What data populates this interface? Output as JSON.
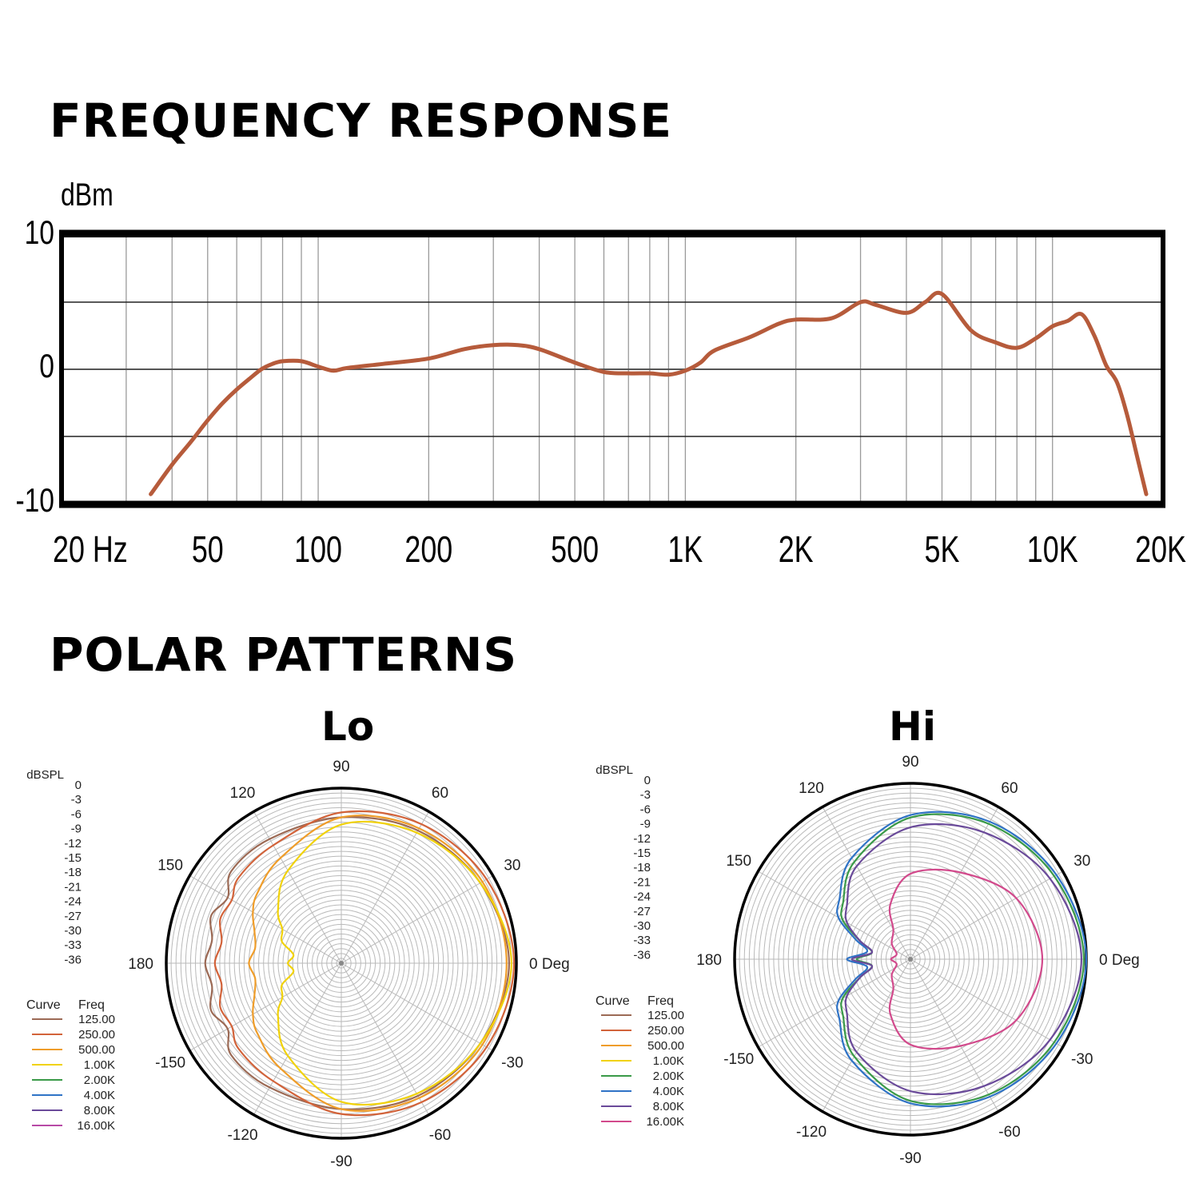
{
  "titles": {
    "frequency_response": "FREQUENCY RESPONSE",
    "polar_patterns": "POLAR PATTERNS"
  },
  "colors": {
    "response_curve": "#b65b3b",
    "grid": "#9a9a9a",
    "frame": "#000000"
  },
  "chart_data": [
    {
      "type": "line",
      "title": "FREQUENCY RESPONSE",
      "xlabel": "",
      "ylabel": "dBm",
      "xscale": "log",
      "xlim": [
        20,
        20000
      ],
      "ylim": [
        -10,
        10
      ],
      "x_tick_values": [
        20,
        50,
        100,
        200,
        500,
        1000,
        2000,
        5000,
        10000,
        20000
      ],
      "x_tick_labels": [
        "20  Hz",
        "50",
        "100",
        "200",
        "500",
        "1K",
        "2K",
        "5K",
        "10K",
        "20K"
      ],
      "y_tick_values": [
        10,
        0,
        -10
      ],
      "y_tick_labels": [
        "10",
        "0",
        "-10"
      ],
      "y_reference_lines": [
        5,
        0,
        -5
      ],
      "grid": true,
      "series": [
        {
          "x": [
            35,
            40,
            45,
            50,
            55,
            60,
            65,
            70,
            75,
            80,
            90,
            100,
            110,
            120,
            150,
            200,
            250,
            300,
            350,
            400,
            500,
            600,
            700,
            800,
            900,
            1000,
            1100,
            1200,
            1500,
            1800,
            2000,
            2500,
            3000,
            3300,
            4000,
            4500,
            5000,
            6000,
            7000,
            8000,
            9000,
            10000,
            11000,
            12000,
            13000,
            14000,
            15000,
            16000,
            17000,
            18000
          ],
          "y": [
            -9.3,
            -7.1,
            -5.4,
            -3.8,
            -2.5,
            -1.5,
            -0.7,
            0.0,
            0.4,
            0.6,
            0.6,
            0.2,
            -0.1,
            0.1,
            0.4,
            0.8,
            1.5,
            1.8,
            1.8,
            1.5,
            0.5,
            -0.2,
            -0.3,
            -0.3,
            -0.4,
            -0.1,
            0.5,
            1.4,
            2.4,
            3.4,
            3.7,
            3.8,
            5.0,
            4.8,
            4.2,
            5.0,
            5.6,
            2.9,
            2.0,
            1.6,
            2.3,
            3.2,
            3.6,
            4.1,
            2.5,
            0.3,
            -1.0,
            -3.5,
            -6.5,
            -9.3
          ]
        }
      ]
    },
    {
      "type": "polar",
      "title": "Lo",
      "radial_label": "dBSPL",
      "radial_ticks": [
        "0",
        "-3",
        "-6",
        "-9",
        "-12",
        "-15",
        "-18",
        "-21",
        "-24",
        "-27",
        "-30",
        "-33",
        "-36"
      ],
      "angle_labels": {
        "0": "0 Deg",
        "30": "30",
        "60": "60",
        "90": "90",
        "120": "120",
        "150": "150",
        "180": "180",
        "-150": "-150",
        "-120": "-120",
        "-90": "-90",
        "-60": "-60",
        "-30": "-30"
      },
      "legend_header": [
        "Curve",
        "Freq"
      ],
      "legend": [
        {
          "freq": "125.00",
          "color": "#9c6a55"
        },
        {
          "freq": "250.00",
          "color": "#d2633a"
        },
        {
          "freq": "500.00",
          "color": "#ef9d2a"
        },
        {
          "freq": "1.00K",
          "color": "#f1d20a"
        },
        {
          "freq": "2.00K",
          "color": "#3a9a48"
        },
        {
          "freq": "4.00K",
          "color": "#2f73c6"
        },
        {
          "freq": "8.00K",
          "color": "#6a4a9a"
        },
        {
          "freq": "16.00K",
          "color": "#b84aa6"
        }
      ],
      "series": [
        {
          "freq": "125.00",
          "color": "#9c6a55",
          "angles": [
            0,
            30,
            60,
            90,
            120,
            140,
            150,
            160,
            170,
            180
          ],
          "levels_db": [
            -1.5,
            -3,
            -4.5,
            -6,
            -6.5,
            -6.5,
            -9,
            -7.5,
            -9,
            -8
          ]
        },
        {
          "freq": "250.00",
          "color": "#d2633a",
          "angles": [
            0,
            30,
            60,
            90,
            120,
            140,
            150,
            160,
            170,
            180
          ],
          "levels_db": [
            -0.5,
            -1.5,
            -3,
            -5,
            -8,
            -8.5,
            -10,
            -9.5,
            -11,
            -10
          ]
        },
        {
          "freq": "500.00",
          "color": "#ef9d2a",
          "angles": [
            0,
            30,
            60,
            90,
            120,
            140,
            150,
            160,
            170,
            180
          ],
          "levels_db": [
            -2,
            -2.5,
            -4,
            -6,
            -11,
            -13.5,
            -15,
            -17,
            -18,
            -17
          ]
        },
        {
          "freq": "1.00K",
          "color": "#f1d20a",
          "angles": [
            0,
            30,
            60,
            90,
            120,
            140,
            150,
            160,
            170,
            180
          ],
          "levels_db": [
            -1,
            -3,
            -5,
            -7.5,
            -14,
            -19,
            -22,
            -23,
            -26,
            -25
          ]
        }
      ]
    },
    {
      "type": "polar",
      "title": "Hi",
      "radial_label": "dBSPL",
      "radial_ticks": [
        "0",
        "-3",
        "-6",
        "-9",
        "-12",
        "-15",
        "-18",
        "-21",
        "-24",
        "-27",
        "-30",
        "-33",
        "-36"
      ],
      "angle_labels": {
        "0": "0 Deg",
        "30": "30",
        "60": "60",
        "90": "90",
        "120": "120",
        "150": "150",
        "180": "180",
        "-150": "-150",
        "-120": "-120",
        "-90": "-90",
        "-60": "-60",
        "-30": "-30"
      },
      "legend_header": [
        "Curve",
        "Freq"
      ],
      "legend": [
        {
          "freq": "125.00",
          "color": "#9c6a55"
        },
        {
          "freq": "250.00",
          "color": "#d2633a"
        },
        {
          "freq": "500.00",
          "color": "#ef9d2a"
        },
        {
          "freq": "1.00K",
          "color": "#f1d20a"
        },
        {
          "freq": "2.00K",
          "color": "#3a9a48"
        },
        {
          "freq": "4.00K",
          "color": "#2f73c6"
        },
        {
          "freq": "8.00K",
          "color": "#6a4a9a"
        },
        {
          "freq": "16.00K",
          "color": "#d24a8c"
        }
      ],
      "series": [
        {
          "freq": "2.00K",
          "color": "#3a9a48",
          "angles": [
            0,
            30,
            60,
            90,
            120,
            140,
            150,
            160,
            170,
            180
          ],
          "levels_db": [
            -0.5,
            -2,
            -4,
            -7,
            -13,
            -18,
            -20,
            -25,
            -28,
            -25
          ]
        },
        {
          "freq": "4.00K",
          "color": "#2f73c6",
          "angles": [
            0,
            30,
            60,
            90,
            120,
            140,
            150,
            160,
            170,
            180
          ],
          "levels_db": [
            0,
            -1.5,
            -3.5,
            -6.5,
            -12,
            -17,
            -19,
            -24,
            -27,
            -23
          ]
        },
        {
          "freq": "8.00K",
          "color": "#6a4a9a",
          "angles": [
            0,
            30,
            60,
            90,
            120,
            140,
            150,
            160,
            170,
            180
          ],
          "levels_db": [
            -1,
            -3,
            -6,
            -9,
            -14,
            -19,
            -21,
            -25,
            -28,
            -24
          ]
        },
        {
          "freq": "16.00K",
          "color": "#d24a8c",
          "angles": [
            0,
            30,
            60,
            90,
            110,
            120,
            140,
            160,
            180
          ],
          "levels_db": [
            -9,
            -11,
            -15.5,
            -18.5,
            -24,
            -29,
            -31,
            -33,
            -32
          ]
        }
      ]
    }
  ]
}
